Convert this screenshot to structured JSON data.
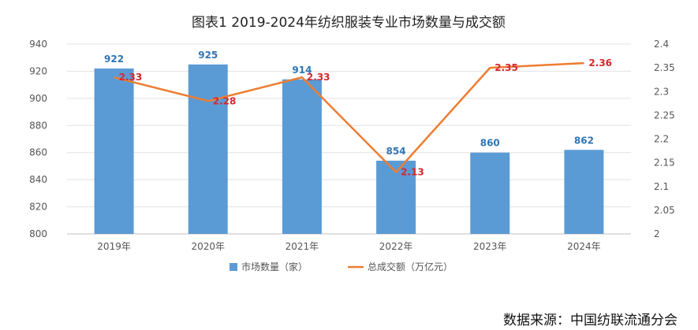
{
  "chart_data": {
    "type": "bar",
    "title": "图表1 2019-2024年纺织服装专业市场数量与成交额",
    "categories": [
      "2019年",
      "2020年",
      "2021年",
      "2022年",
      "2023年",
      "2024年"
    ],
    "series": [
      {
        "name": "市场数量（家）",
        "type": "bar",
        "axis": "left",
        "color": "#5b9bd5",
        "values": [
          922,
          925,
          914,
          854,
          860,
          862
        ]
      },
      {
        "name": "总成交额（万亿元）",
        "type": "line",
        "axis": "right",
        "color": "#ed7d31",
        "values": [
          2.33,
          2.28,
          2.33,
          2.13,
          2.35,
          2.36
        ]
      }
    ],
    "y_left": {
      "lim": [
        800,
        940
      ],
      "ticks": [
        800,
        820,
        840,
        860,
        880,
        900,
        920,
        940
      ]
    },
    "y_right": {
      "lim": [
        2,
        2.4
      ],
      "ticks": [
        "2",
        "2.05",
        "2.1",
        "2.15",
        "2.2",
        "2.25",
        "2.3",
        "2.35",
        "2.4"
      ]
    },
    "grid": true,
    "legend_position": "bottom"
  },
  "source_note": "数据来源：中国纺联流通分会"
}
